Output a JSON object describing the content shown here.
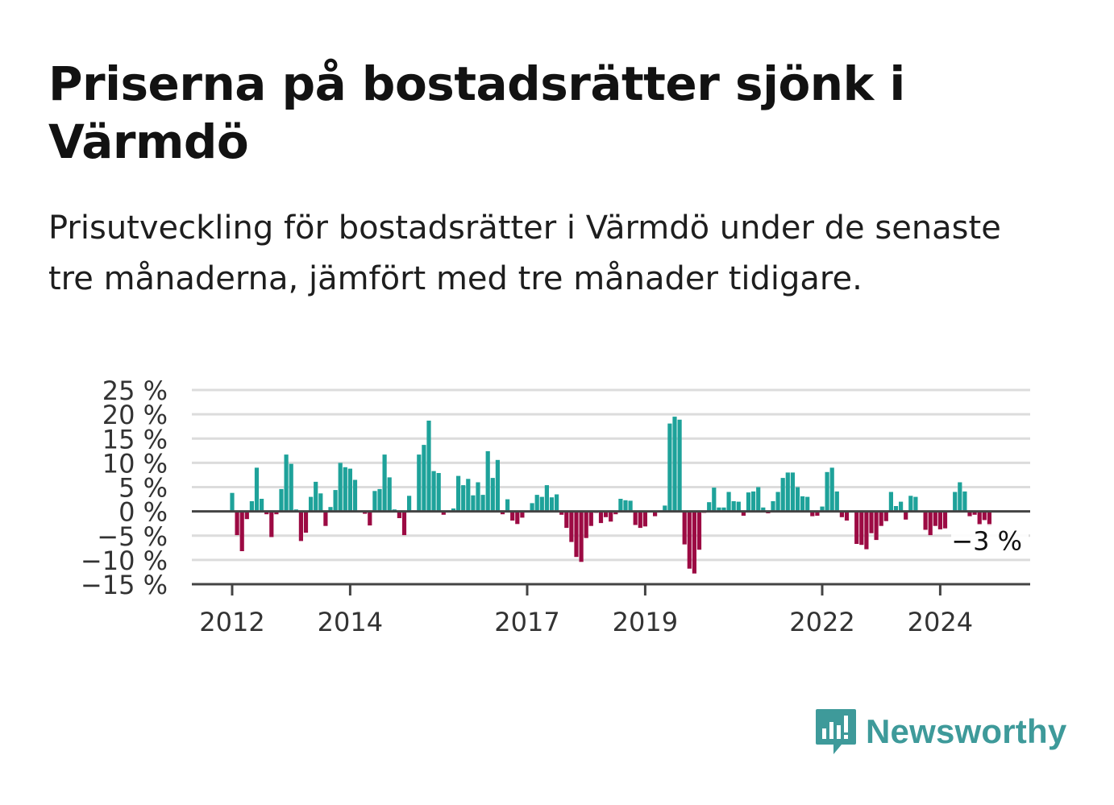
{
  "title": "Priserna på bostadsrätter sjönk i Värmdö",
  "subtitle": "Prisutveckling för bostadsrätter i Värmdö under de senaste tre månaderna, jämfört med tre månader tidigare.",
  "logo": {
    "text": "Newsworthy",
    "icon": "newsworthy-logo-icon",
    "color": "#3e9a9a"
  },
  "colors": {
    "positive": "#1ea29a",
    "negative": "#9c0a43",
    "grid": "#dcdcdc",
    "axis": "#444444"
  },
  "chart_data": {
    "type": "bar",
    "title": "",
    "xlabel": "",
    "ylabel": "",
    "ylim": [
      -15,
      25
    ],
    "y_ticks": [
      25,
      20,
      15,
      10,
      5,
      0,
      -5,
      -10,
      -15
    ],
    "y_tick_labels": [
      "25 %",
      "20 %",
      "15 %",
      "10 %",
      "5 %",
      "0 %",
      "−5 %",
      "−10 %",
      "−15 %"
    ],
    "x_ticks": [
      "2012",
      "2014",
      "2017",
      "2019",
      "2022",
      "2024"
    ],
    "grid": true,
    "annotation": {
      "label": "−3 %",
      "value": -3
    },
    "start": "2012-01",
    "values": [
      3.8,
      -4.9,
      -8.2,
      -1.6,
      2.1,
      9.0,
      2.6,
      -0.6,
      -5.3,
      -0.6,
      4.6,
      11.7,
      9.8,
      0.4,
      -6.1,
      -4.4,
      3.0,
      6.1,
      3.7,
      -3.0,
      0.9,
      4.4,
      10.0,
      9.1,
      8.8,
      6.5,
      0.0,
      -0.5,
      -2.9,
      4.2,
      4.6,
      11.7,
      7.0,
      0.4,
      -1.4,
      -4.9,
      3.2,
      0.2,
      11.7,
      13.7,
      18.7,
      8.3,
      7.9,
      -0.7,
      0.2,
      0.6,
      7.3,
      5.4,
      6.7,
      3.3,
      6.0,
      3.4,
      12.4,
      6.9,
      10.6,
      -0.6,
      2.5,
      -1.9,
      -2.6,
      -1.3,
      -0.2,
      1.7,
      3.4,
      3.0,
      5.4,
      2.9,
      3.5,
      -0.7,
      -3.4,
      -6.3,
      -9.4,
      -10.4,
      -5.5,
      -3.0,
      -0.3,
      -2.4,
      -1.2,
      -2.1,
      -0.6,
      2.6,
      2.3,
      2.2,
      -2.8,
      -3.4,
      -3.1,
      -0.2,
      -1.0,
      0.2,
      1.2,
      18.1,
      19.5,
      18.9,
      -6.8,
      -11.8,
      -12.8,
      -7.9,
      -0.3,
      1.9,
      4.9,
      0.8,
      0.8,
      4.0,
      2.1,
      2.0,
      -0.9,
      3.9,
      4.1,
      5.0,
      0.8,
      -0.4,
      2.1,
      4.0,
      6.9,
      8.0,
      8.0,
      5.0,
      3.1,
      3.0,
      -1.0,
      -0.9,
      1.0,
      8.1,
      9.0,
      4.1,
      -1.2,
      -1.9,
      0.0,
      -6.7,
      -6.9,
      -7.8,
      -4.5,
      -5.9,
      -3.0,
      -2.0,
      4.0,
      1.1,
      2.0,
      -1.7,
      3.2,
      3.0,
      0.0,
      -3.8,
      -4.9,
      -3.0,
      -3.7,
      -3.5,
      0.0,
      4.0,
      6.0,
      4.1,
      -1.0,
      -0.7,
      -2.8,
      -1.8,
      -3.0
    ]
  }
}
